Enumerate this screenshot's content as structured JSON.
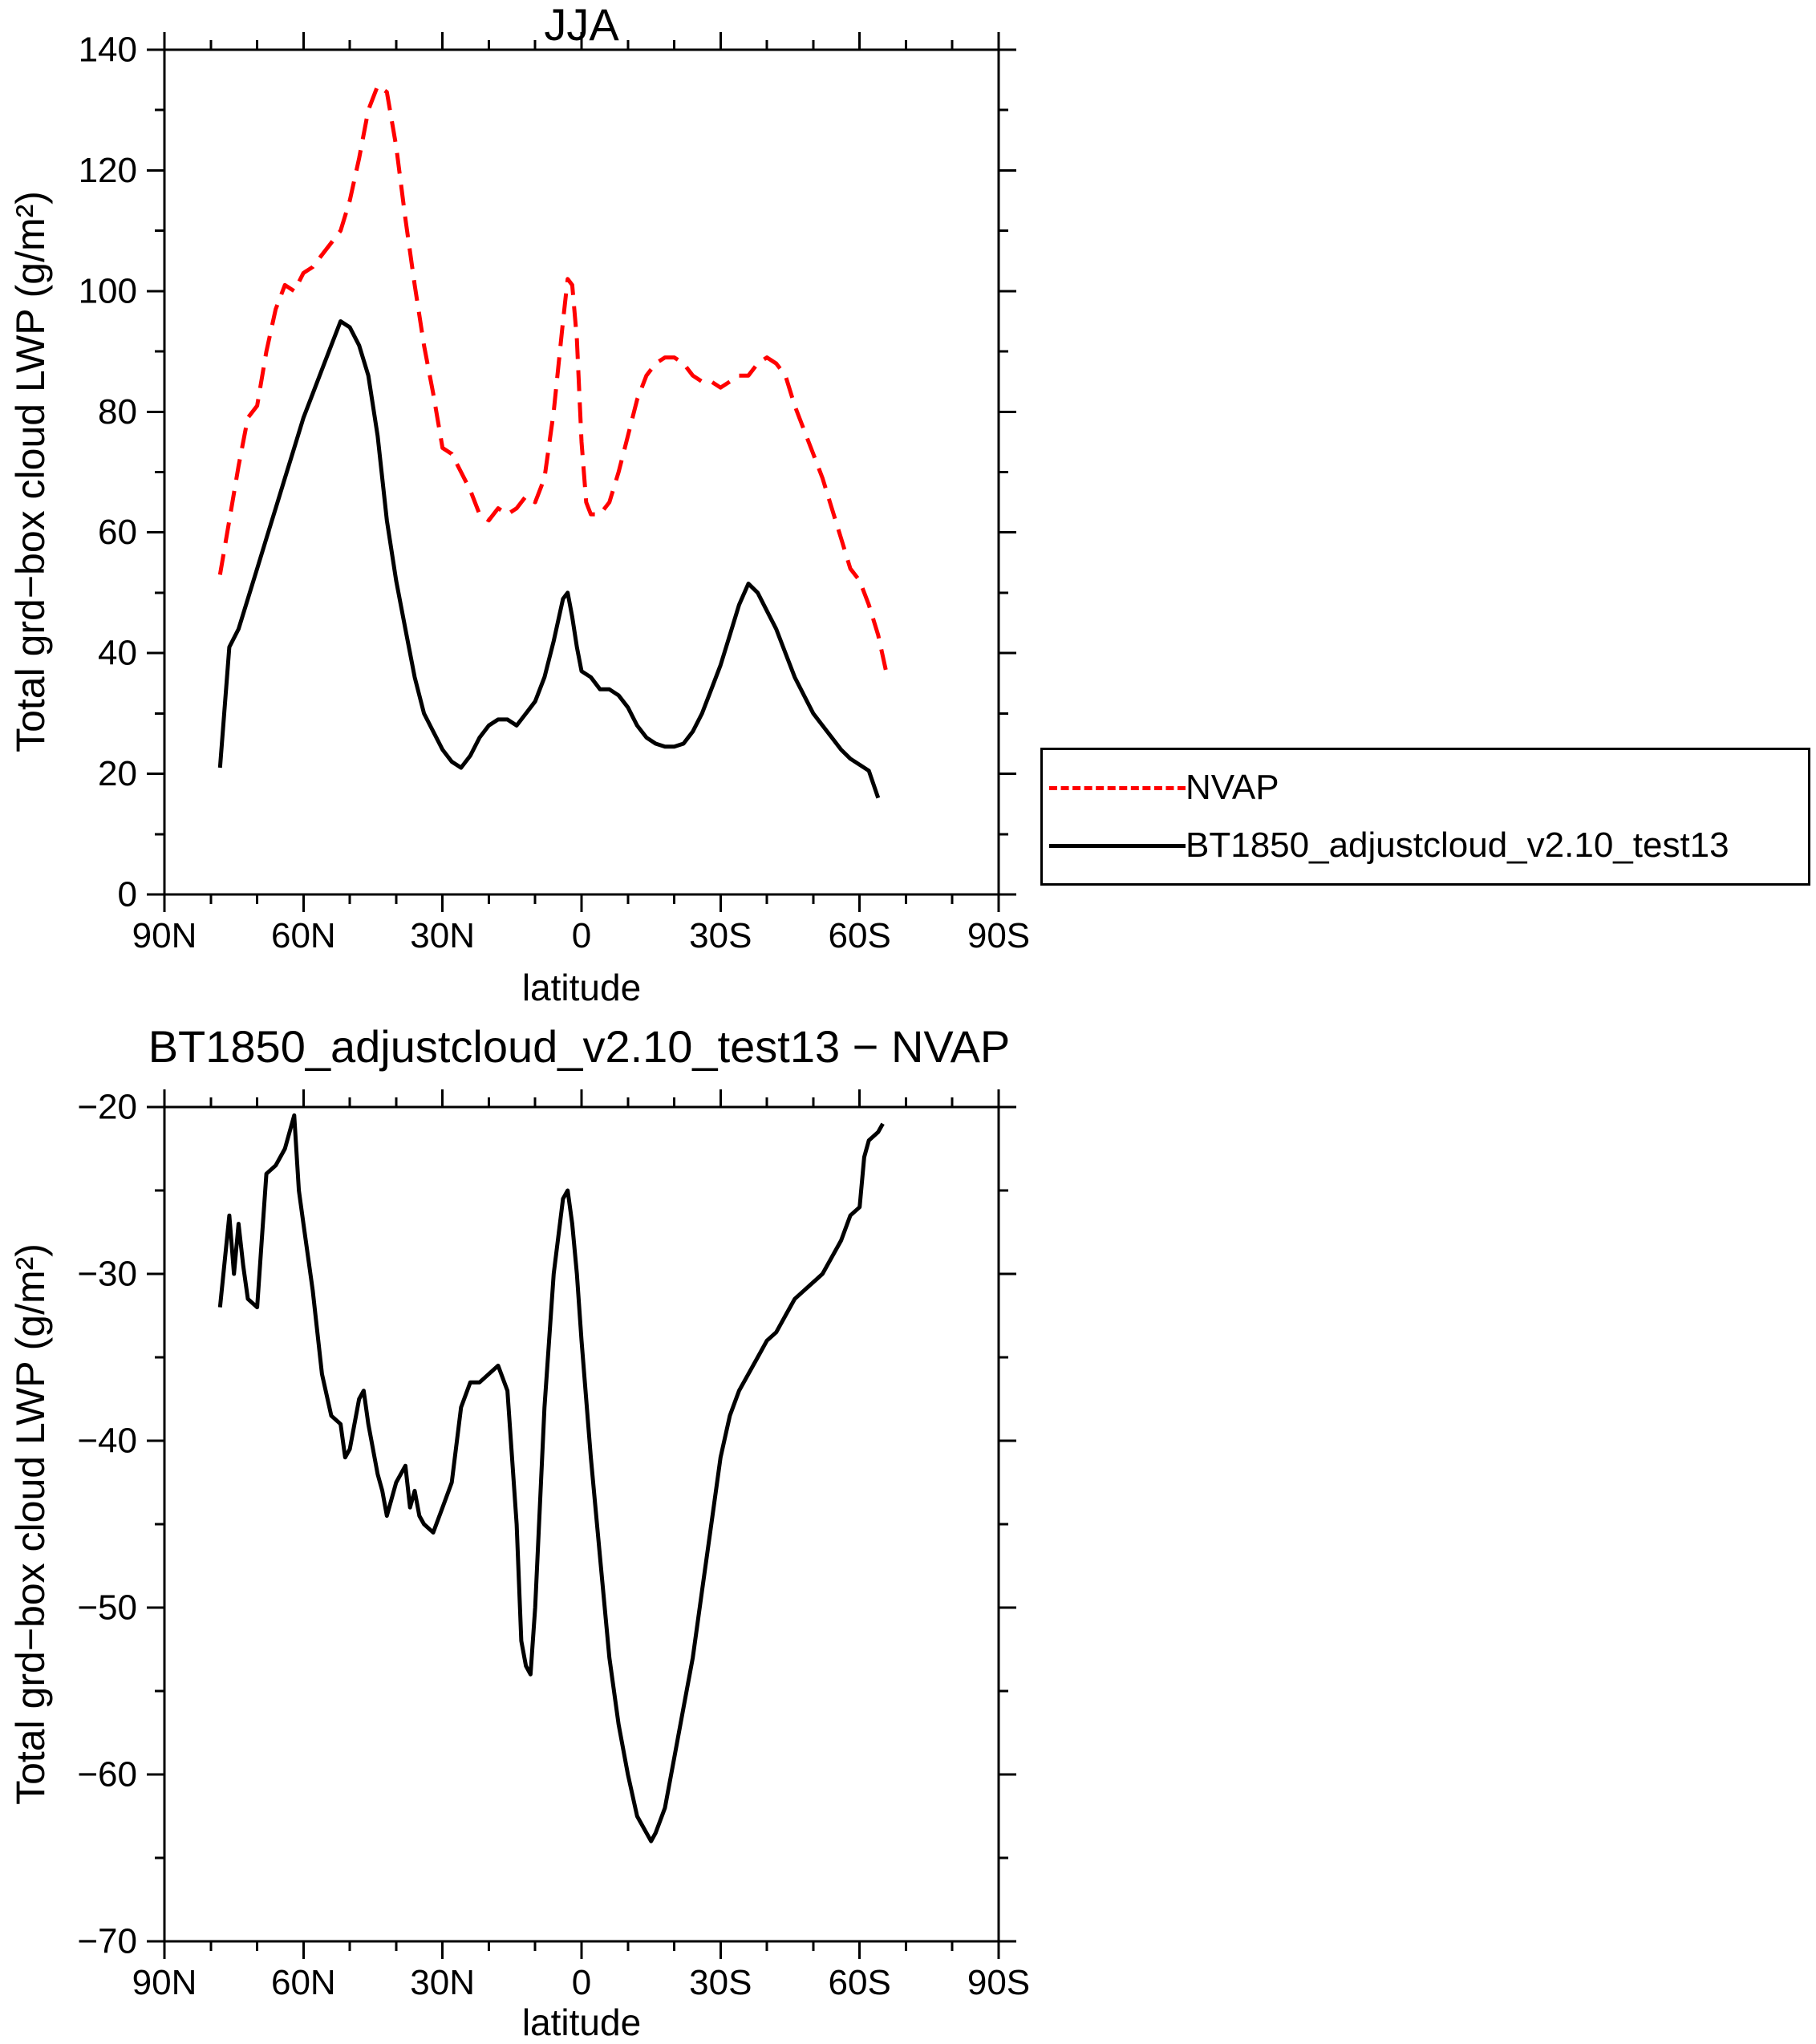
{
  "legend": {
    "position": "right",
    "entries": [
      {
        "label": "NVAP",
        "color": "#ff0000",
        "dash": true
      },
      {
        "label": "BT1850_adjustcloud_v2.10_test13",
        "color": "#000000",
        "dash": false
      }
    ]
  },
  "chart_data": [
    {
      "type": "line",
      "title": "JJA",
      "xlabel": "latitude",
      "ylabel": "Total grd−box cloud LWP (g/m²)",
      "xlim": [
        90,
        -90
      ],
      "ylim": [
        0,
        140
      ],
      "x_minor_step": 10,
      "y_minor_step": 10,
      "xticks": [
        {
          "v": 90,
          "label": "90N"
        },
        {
          "v": 60,
          "label": "60N"
        },
        {
          "v": 30,
          "label": "30N"
        },
        {
          "v": 0,
          "label": "0"
        },
        {
          "v": -30,
          "label": "30S"
        },
        {
          "v": -60,
          "label": "60S"
        },
        {
          "v": -90,
          "label": "90S"
        }
      ],
      "yticks": [
        {
          "v": 0,
          "label": "0"
        },
        {
          "v": 20,
          "label": "20"
        },
        {
          "v": 40,
          "label": "40"
        },
        {
          "v": 60,
          "label": "60"
        },
        {
          "v": 80,
          "label": "80"
        },
        {
          "v": 100,
          "label": "100"
        },
        {
          "v": 120,
          "label": "120"
        },
        {
          "v": 140,
          "label": "140"
        }
      ],
      "series": [
        {
          "name": "NVAP",
          "color": "#ff0000",
          "dash": true,
          "points": [
            [
              78,
              53
            ],
            [
              76,
              62
            ],
            [
              74,
              71
            ],
            [
              72,
              79
            ],
            [
              70,
              81
            ],
            [
              68,
              90
            ],
            [
              66,
              97
            ],
            [
              64,
              101
            ],
            [
              62,
              100
            ],
            [
              60,
              103
            ],
            [
              58,
              104
            ],
            [
              56,
              106
            ],
            [
              54,
              108
            ],
            [
              52,
              110
            ],
            [
              50,
              115
            ],
            [
              48,
              122
            ],
            [
              46,
              130
            ],
            [
              44,
              134
            ],
            [
              42,
              133
            ],
            [
              40,
              124
            ],
            [
              38,
              112
            ],
            [
              36,
              101
            ],
            [
              34,
              91
            ],
            [
              32,
              83
            ],
            [
              30,
              74
            ],
            [
              28,
              73
            ],
            [
              26,
              70
            ],
            [
              24,
              67
            ],
            [
              22,
              63
            ],
            [
              20,
              62
            ],
            [
              18,
              64
            ],
            [
              16,
              63
            ],
            [
              14,
              64
            ],
            [
              12,
              66
            ],
            [
              10,
              65
            ],
            [
              8,
              69
            ],
            [
              6,
              80
            ],
            [
              4,
              95
            ],
            [
              3,
              102
            ],
            [
              2,
              101
            ],
            [
              1,
              92
            ],
            [
              0,
              75
            ],
            [
              -1,
              65
            ],
            [
              -2,
              63
            ],
            [
              -4,
              63
            ],
            [
              -6,
              65
            ],
            [
              -8,
              70
            ],
            [
              -10,
              76
            ],
            [
              -12,
              82
            ],
            [
              -14,
              86
            ],
            [
              -16,
              88
            ],
            [
              -18,
              89
            ],
            [
              -20,
              89
            ],
            [
              -22,
              88
            ],
            [
              -24,
              86
            ],
            [
              -26,
              85
            ],
            [
              -28,
              85
            ],
            [
              -30,
              84
            ],
            [
              -32,
              85
            ],
            [
              -34,
              86
            ],
            [
              -36,
              86
            ],
            [
              -38,
              88
            ],
            [
              -40,
              89
            ],
            [
              -42,
              88
            ],
            [
              -44,
              86
            ],
            [
              -46,
              81
            ],
            [
              -48,
              77
            ],
            [
              -50,
              73
            ],
            [
              -52,
              69
            ],
            [
              -54,
              64
            ],
            [
              -56,
              59
            ],
            [
              -58,
              54
            ],
            [
              -60,
              52
            ],
            [
              -62,
              48
            ],
            [
              -64,
              43
            ],
            [
              -66,
              36
            ]
          ]
        },
        {
          "name": "BT1850_adjustcloud_v2.10_test13",
          "color": "#000000",
          "dash": false,
          "points": [
            [
              78,
              21
            ],
            [
              76,
              41
            ],
            [
              74,
              44
            ],
            [
              72,
              49
            ],
            [
              70,
              54
            ],
            [
              68,
              59
            ],
            [
              66,
              64
            ],
            [
              64,
              69
            ],
            [
              62,
              74
            ],
            [
              60,
              79
            ],
            [
              58,
              83
            ],
            [
              56,
              87
            ],
            [
              54,
              91
            ],
            [
              52,
              95
            ],
            [
              50,
              94
            ],
            [
              48,
              91
            ],
            [
              46,
              86
            ],
            [
              44,
              76
            ],
            [
              42,
              62
            ],
            [
              40,
              52
            ],
            [
              38,
              44
            ],
            [
              36,
              36
            ],
            [
              34,
              30
            ],
            [
              32,
              27
            ],
            [
              30,
              24
            ],
            [
              28,
              22
            ],
            [
              26,
              21
            ],
            [
              24,
              23
            ],
            [
              22,
              26
            ],
            [
              20,
              28
            ],
            [
              18,
              29
            ],
            [
              16,
              29
            ],
            [
              14,
              28
            ],
            [
              12,
              30
            ],
            [
              10,
              32
            ],
            [
              8,
              36
            ],
            [
              6,
              42
            ],
            [
              4,
              49
            ],
            [
              3,
              50
            ],
            [
              2,
              46
            ],
            [
              1,
              41
            ],
            [
              0,
              37
            ],
            [
              -2,
              36
            ],
            [
              -4,
              34
            ],
            [
              -6,
              34
            ],
            [
              -8,
              33
            ],
            [
              -10,
              31
            ],
            [
              -12,
              28
            ],
            [
              -14,
              26
            ],
            [
              -16,
              25
            ],
            [
              -18,
              24.5
            ],
            [
              -20,
              24.5
            ],
            [
              -22,
              25
            ],
            [
              -24,
              27
            ],
            [
              -26,
              30
            ],
            [
              -28,
              34
            ],
            [
              -30,
              38
            ],
            [
              -32,
              43
            ],
            [
              -34,
              48
            ],
            [
              -36,
              51.5
            ],
            [
              -38,
              50
            ],
            [
              -40,
              47
            ],
            [
              -42,
              44
            ],
            [
              -44,
              40
            ],
            [
              -46,
              36
            ],
            [
              -48,
              33
            ],
            [
              -50,
              30
            ],
            [
              -52,
              28
            ],
            [
              -54,
              26
            ],
            [
              -56,
              24
            ],
            [
              -58,
              22.5
            ],
            [
              -60,
              21.5
            ],
            [
              -62,
              20.5
            ],
            [
              -64,
              16
            ]
          ]
        }
      ]
    },
    {
      "type": "line",
      "title": "BT1850_adjustcloud_v2.10_test13 − NVAP",
      "xlabel": "latitude",
      "ylabel": "Total grd−box cloud LWP (g/m²)",
      "xlim": [
        90,
        -90
      ],
      "ylim": [
        -70,
        -20
      ],
      "x_minor_step": 10,
      "y_minor_step": 5,
      "xticks": [
        {
          "v": 90,
          "label": "90N"
        },
        {
          "v": 60,
          "label": "60N"
        },
        {
          "v": 30,
          "label": "30N"
        },
        {
          "v": 0,
          "label": "0"
        },
        {
          "v": -30,
          "label": "30S"
        },
        {
          "v": -60,
          "label": "60S"
        },
        {
          "v": -90,
          "label": "90S"
        }
      ],
      "yticks": [
        {
          "v": -20,
          "label": "−20"
        },
        {
          "v": -30,
          "label": "−30"
        },
        {
          "v": -40,
          "label": "−40"
        },
        {
          "v": -50,
          "label": "−50"
        },
        {
          "v": -60,
          "label": "−60"
        },
        {
          "v": -70,
          "label": "−70"
        }
      ],
      "series": [
        {
          "name": "BT1850_adjustcloud_v2.10_test13 − NVAP",
          "color": "#000000",
          "dash": false,
          "points": [
            [
              78,
              -32
            ],
            [
              76,
              -26.5
            ],
            [
              75,
              -30
            ],
            [
              74,
              -27
            ],
            [
              73,
              -29.5
            ],
            [
              72,
              -31.5
            ],
            [
              70,
              -32
            ],
            [
              69,
              -28
            ],
            [
              68,
              -24
            ],
            [
              66,
              -23.5
            ],
            [
              64,
              -22.5
            ],
            [
              62,
              -20.5
            ],
            [
              61,
              -25
            ],
            [
              60,
              -27
            ],
            [
              58,
              -31
            ],
            [
              56,
              -36
            ],
            [
              54,
              -38.5
            ],
            [
              52,
              -39
            ],
            [
              51,
              -41
            ],
            [
              50,
              -40.5
            ],
            [
              48,
              -37.5
            ],
            [
              47,
              -37
            ],
            [
              46,
              -39
            ],
            [
              44,
              -42
            ],
            [
              43,
              -43
            ],
            [
              42,
              -44.5
            ],
            [
              41,
              -43.5
            ],
            [
              40,
              -42.5
            ],
            [
              38,
              -41.5
            ],
            [
              37,
              -44
            ],
            [
              36,
              -43
            ],
            [
              35,
              -44.5
            ],
            [
              34,
              -45
            ],
            [
              32,
              -45.5
            ],
            [
              30,
              -44
            ],
            [
              28,
              -42.5
            ],
            [
              26,
              -38
            ],
            [
              24,
              -36.5
            ],
            [
              22,
              -36.5
            ],
            [
              20,
              -36
            ],
            [
              18,
              -35.5
            ],
            [
              16,
              -37
            ],
            [
              14,
              -45
            ],
            [
              13,
              -52
            ],
            [
              12,
              -53.5
            ],
            [
              11,
              -54
            ],
            [
              10,
              -50
            ],
            [
              8,
              -38
            ],
            [
              6,
              -30
            ],
            [
              4,
              -25.5
            ],
            [
              3,
              -25
            ],
            [
              2,
              -27
            ],
            [
              1,
              -30
            ],
            [
              0,
              -34
            ],
            [
              -2,
              -41
            ],
            [
              -4,
              -47
            ],
            [
              -6,
              -53
            ],
            [
              -8,
              -57
            ],
            [
              -10,
              -60
            ],
            [
              -12,
              -62.5
            ],
            [
              -14,
              -63.5
            ],
            [
              -15,
              -64
            ],
            [
              -16,
              -63.5
            ],
            [
              -18,
              -62
            ],
            [
              -20,
              -59
            ],
            [
              -22,
              -56
            ],
            [
              -24,
              -53
            ],
            [
              -26,
              -49
            ],
            [
              -28,
              -45
            ],
            [
              -30,
              -41
            ],
            [
              -32,
              -38.5
            ],
            [
              -34,
              -37
            ],
            [
              -36,
              -36
            ],
            [
              -38,
              -35
            ],
            [
              -40,
              -34
            ],
            [
              -42,
              -33.5
            ],
            [
              -44,
              -32.5
            ],
            [
              -46,
              -31.5
            ],
            [
              -48,
              -31
            ],
            [
              -50,
              -30.5
            ],
            [
              -52,
              -30
            ],
            [
              -54,
              -29
            ],
            [
              -56,
              -28
            ],
            [
              -58,
              -26.5
            ],
            [
              -60,
              -26
            ],
            [
              -61,
              -23
            ],
            [
              -62,
              -22
            ],
            [
              -64,
              -21.5
            ],
            [
              -65,
              -21
            ]
          ]
        }
      ]
    }
  ]
}
